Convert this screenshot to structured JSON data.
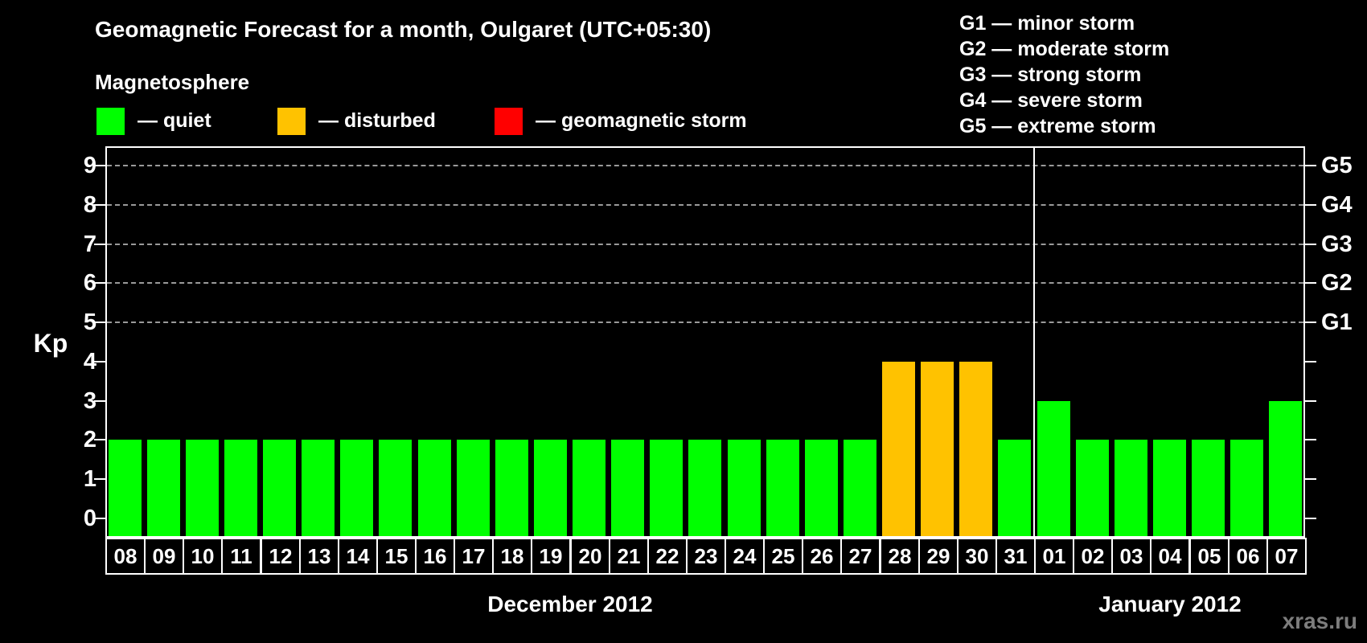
{
  "title": "Geomagnetic Forecast for a month, Oulgaret (UTC+05:30)",
  "legend": {
    "title": "Magnetosphere",
    "items": [
      {
        "name": "quiet",
        "label": "— quiet",
        "swatch_color": "#00FF00"
      },
      {
        "name": "disturbed",
        "label": "— disturbed",
        "swatch_color": "#FFC200"
      },
      {
        "name": "storm",
        "label": "— geomagnetic storm",
        "swatch_color": "#FF0000"
      }
    ]
  },
  "g_legend": {
    "lines": [
      "G1 — minor storm",
      "G2 — moderate storm",
      "G3 — strong storm",
      "G4 — severe storm",
      "G5 — extreme storm"
    ]
  },
  "status_colors": {
    "quiet": "#00FF00",
    "disturbed": "#FFC200",
    "storm": "#FF0000"
  },
  "watermark": "xras.ru",
  "chart_data": {
    "type": "bar",
    "title": "Geomagnetic Forecast for a month, Oulgaret (UTC+05:30)",
    "xlabel": "",
    "ylabel": "Kp",
    "ylim": [
      0,
      9
    ],
    "grid": "dashed horizontal lines at Kp 5-9 only",
    "legend_position": "top-left and top-right",
    "categories": [
      "08",
      "09",
      "10",
      "11",
      "12",
      "13",
      "14",
      "15",
      "16",
      "17",
      "18",
      "19",
      "20",
      "21",
      "22",
      "23",
      "24",
      "25",
      "26",
      "27",
      "28",
      "29",
      "30",
      "31",
      "01",
      "02",
      "03",
      "04",
      "05",
      "06",
      "07"
    ],
    "values": [
      2,
      2,
      2,
      2,
      2,
      2,
      2,
      2,
      2,
      2,
      2,
      2,
      2,
      2,
      2,
      2,
      2,
      2,
      2,
      2,
      4,
      4,
      4,
      2,
      3,
      2,
      2,
      2,
      2,
      2,
      3
    ],
    "statuses": [
      "quiet",
      "quiet",
      "quiet",
      "quiet",
      "quiet",
      "quiet",
      "quiet",
      "quiet",
      "quiet",
      "quiet",
      "quiet",
      "quiet",
      "quiet",
      "quiet",
      "quiet",
      "quiet",
      "quiet",
      "quiet",
      "quiet",
      "quiet",
      "disturbed",
      "disturbed",
      "disturbed",
      "quiet",
      "quiet",
      "quiet",
      "quiet",
      "quiet",
      "quiet",
      "quiet",
      "quiet"
    ],
    "months": [
      {
        "label": "December 2012",
        "days": 24
      },
      {
        "label": "January 2012",
        "days": 7
      }
    ],
    "y_ticks": [
      0,
      1,
      2,
      3,
      4,
      5,
      6,
      7,
      8,
      9
    ],
    "gridlines_at": [
      5,
      6,
      7,
      8,
      9
    ],
    "right_axis_labels": [
      {
        "level": 5,
        "label": "G1"
      },
      {
        "level": 6,
        "label": "G2"
      },
      {
        "level": 7,
        "label": "G3"
      },
      {
        "level": 8,
        "label": "G4"
      },
      {
        "level": 9,
        "label": "G5"
      }
    ]
  }
}
